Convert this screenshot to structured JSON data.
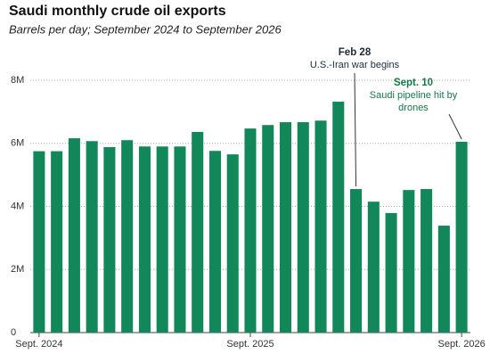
{
  "chart_data": {
    "type": "bar",
    "title": "Saudi monthly crude oil exports",
    "subtitle": "Barrels per day; September 2024 to September 2026",
    "categories": [
      "Sept. 2024",
      null,
      null,
      null,
      null,
      null,
      null,
      null,
      null,
      null,
      null,
      null,
      "Sept. 2025",
      null,
      null,
      null,
      null,
      null,
      null,
      null,
      null,
      null,
      null,
      null,
      "Sept. 2026"
    ],
    "values": [
      5750000,
      5750000,
      6160000,
      6070000,
      5880000,
      6100000,
      5900000,
      5900000,
      5900000,
      6360000,
      5760000,
      5650000,
      6470000,
      6580000,
      6670000,
      6670000,
      6720000,
      7320000,
      4550000,
      4150000,
      3790000,
      4520000,
      4550000,
      3390000,
      6050000
    ],
    "color": "#11875a",
    "ylim": [
      0,
      8000000
    ],
    "yticks": [
      0,
      {
        "value": 2000000,
        "label": "2M"
      },
      {
        "value": 4000000,
        "label": "4M"
      },
      {
        "value": 6000000,
        "label": "6M"
      },
      {
        "value": 8000000,
        "label": "8M"
      }
    ],
    "grid": true,
    "annotations": [
      {
        "title": "Feb 28",
        "lines": [
          "U.S.-Iran war begins"
        ],
        "color": "#1b2a3a"
      },
      {
        "title": "Sept. 10",
        "lines": [
          "Saudi pipeline hit by",
          "drones"
        ],
        "color": "#16774a"
      }
    ]
  }
}
